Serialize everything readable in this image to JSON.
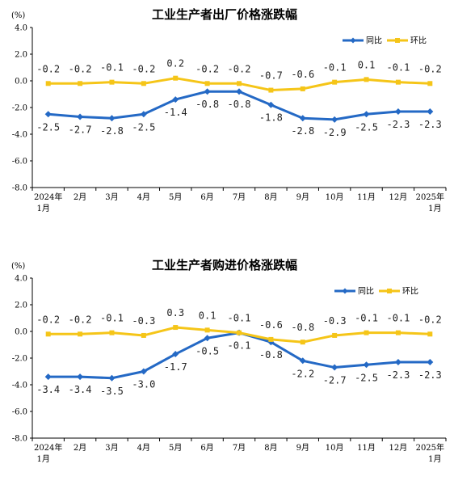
{
  "chart_data": [
    {
      "type": "line",
      "title": "工业生产者出厂价格涨跌幅",
      "unit": "(%)",
      "categories": [
        "2024年|1月",
        "2月",
        "3月",
        "4月",
        "5月",
        "6月",
        "7月",
        "8月",
        "9月",
        "10月",
        "11月",
        "12月",
        "2025年|1月"
      ],
      "ylim": [
        -8.0,
        4.0
      ],
      "yticks": [
        "4.0",
        "2.0",
        "0.0",
        "-2.0",
        "-4.0",
        "-6.0",
        "-8.0"
      ],
      "ytick_values": [
        4,
        2,
        0,
        -2,
        -4,
        -6,
        -8
      ],
      "grid": false,
      "legend_position": "top-right",
      "series": [
        {
          "name": "同比",
          "color": "#2469c5",
          "marker": "diamond",
          "values": [
            -2.5,
            -2.7,
            -2.8,
            -2.5,
            -1.4,
            -0.8,
            -0.8,
            -1.8,
            -2.8,
            -2.9,
            -2.5,
            -2.3,
            -2.3
          ],
          "labels": [
            "-2.5",
            "-2.7",
            "-2.8",
            "-2.5",
            "-1.4",
            "-0.8",
            "-0.8",
            "-1.8",
            "-2.8",
            "-2.9",
            "-2.5",
            "-2.3",
            "-2.3"
          ]
        },
        {
          "name": "环比",
          "color": "#f5c518",
          "marker": "square",
          "values": [
            -0.2,
            -0.2,
            -0.1,
            -0.2,
            0.2,
            -0.2,
            -0.2,
            -0.7,
            -0.6,
            -0.1,
            0.1,
            -0.1,
            -0.2
          ],
          "labels": [
            "-0.2",
            "-0.2",
            "-0.1",
            "-0.2",
            "0.2",
            "-0.2",
            "-0.2",
            "-0.7",
            "-0.6",
            "-0.1",
            "0.1",
            "-0.1",
            "-0.2"
          ]
        }
      ]
    },
    {
      "type": "line",
      "title": "工业生产者购进价格涨跌幅",
      "unit": "(%)",
      "categories": [
        "2024年|1月",
        "2月",
        "3月",
        "4月",
        "5月",
        "6月",
        "7月",
        "8月",
        "9月",
        "10月",
        "11月",
        "12月",
        "2025年|1月"
      ],
      "ylim": [
        -8.0,
        4.0
      ],
      "yticks": [
        "4.0",
        "2.0",
        "0.0",
        "-2.0",
        "-4.0",
        "-6.0",
        "-8.0"
      ],
      "ytick_values": [
        4,
        2,
        0,
        -2,
        -4,
        -6,
        -8
      ],
      "grid": false,
      "legend_position": "top-right",
      "series": [
        {
          "name": "同比",
          "color": "#2469c5",
          "marker": "diamond",
          "values": [
            -3.4,
            -3.4,
            -3.5,
            -3.0,
            -1.7,
            -0.5,
            -0.1,
            -0.8,
            -2.2,
            -2.7,
            -2.5,
            -2.3,
            -2.3
          ],
          "labels": [
            "-3.4",
            "-3.4",
            "-3.5",
            "-3.0",
            "-1.7",
            "-0.5",
            "-0.1",
            "-0.8",
            "-2.2",
            "-2.7",
            "-2.5",
            "-2.3",
            "-2.3"
          ]
        },
        {
          "name": "环比",
          "color": "#f5c518",
          "marker": "square",
          "values": [
            -0.2,
            -0.2,
            -0.1,
            -0.3,
            0.3,
            0.1,
            -0.1,
            -0.6,
            -0.8,
            -0.3,
            -0.1,
            -0.1,
            -0.2
          ],
          "labels": [
            "-0.2",
            "-0.2",
            "-0.1",
            "-0.3",
            "0.3",
            "0.1",
            "-0.1",
            "-0.6",
            "-0.8",
            "-0.3",
            "-0.1",
            "-0.1",
            "-0.2"
          ]
        }
      ]
    }
  ]
}
